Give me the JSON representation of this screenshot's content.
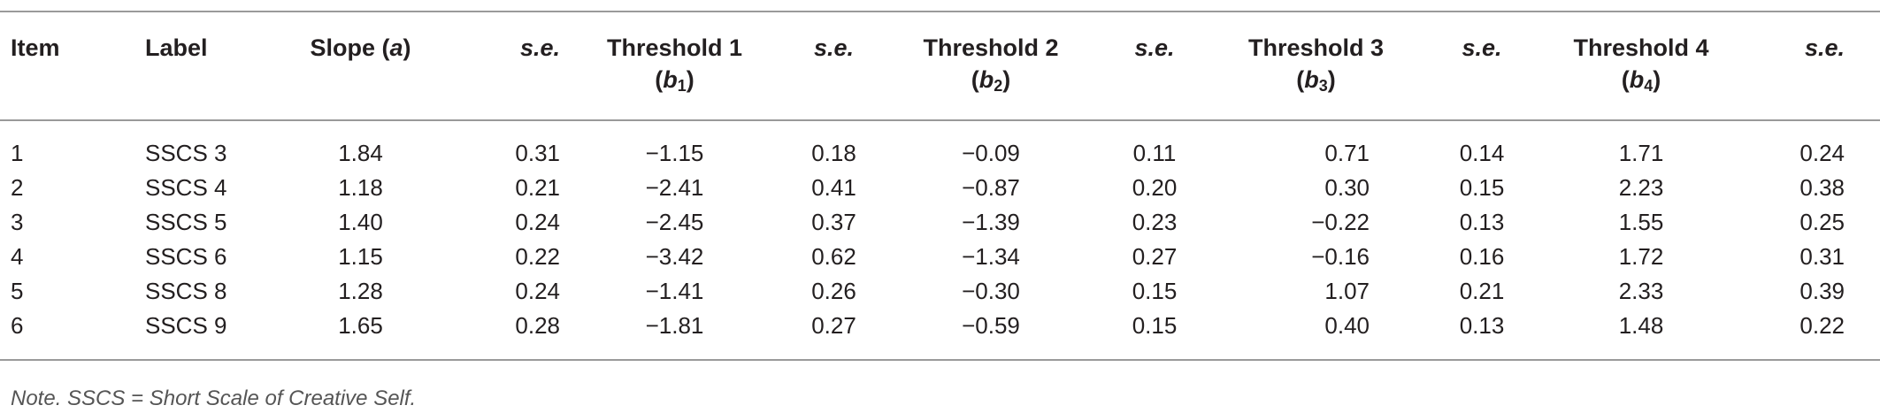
{
  "table": {
    "headers": {
      "item": "Item",
      "label": "Label",
      "slope_text": "Slope (",
      "slope_sym": "a",
      "slope_close": ")",
      "se": "s.e.",
      "threshold1": "Threshold 1",
      "threshold2": "Threshold 2",
      "threshold3": "Threshold 3",
      "threshold4": "Threshold 4",
      "b_letter": "b",
      "b1_sub": "1",
      "b2_sub": "2",
      "b3_sub": "3",
      "b4_sub": "4"
    },
    "rows": [
      {
        "item": "1",
        "label": "SSCS 3",
        "slope": "1.84",
        "se1": "0.31",
        "t1": "−1.15",
        "se2": "0.18",
        "t2": "−0.09",
        "se3": "0.11",
        "t3": "0.71",
        "se4": "0.14",
        "t4": "1.71",
        "se5": "0.24"
      },
      {
        "item": "2",
        "label": "SSCS 4",
        "slope": "1.18",
        "se1": "0.21",
        "t1": "−2.41",
        "se2": "0.41",
        "t2": "−0.87",
        "se3": "0.20",
        "t3": "0.30",
        "se4": "0.15",
        "t4": "2.23",
        "se5": "0.38"
      },
      {
        "item": "3",
        "label": "SSCS 5",
        "slope": "1.40",
        "se1": "0.24",
        "t1": "−2.45",
        "se2": "0.37",
        "t2": "−1.39",
        "se3": "0.23",
        "t3": "−0.22",
        "se4": "0.13",
        "t4": "1.55",
        "se5": "0.25"
      },
      {
        "item": "4",
        "label": "SSCS 6",
        "slope": "1.15",
        "se1": "0.22",
        "t1": "−3.42",
        "se2": "0.62",
        "t2": "−1.34",
        "se3": "0.27",
        "t3": "−0.16",
        "se4": "0.16",
        "t4": "1.72",
        "se5": "0.31"
      },
      {
        "item": "5",
        "label": "SSCS 8",
        "slope": "1.28",
        "se1": "0.24",
        "t1": "−1.41",
        "se2": "0.26",
        "t2": "−0.30",
        "se3": "0.15",
        "t3": "1.07",
        "se4": "0.21",
        "t4": "2.33",
        "se5": "0.39"
      },
      {
        "item": "6",
        "label": "SSCS 9",
        "slope": "1.65",
        "se1": "0.28",
        "t1": "−1.81",
        "se2": "0.27",
        "t2": "−0.59",
        "se3": "0.15",
        "t3": "0.40",
        "se4": "0.13",
        "t4": "1.48",
        "se5": "0.22"
      }
    ]
  },
  "note": "Note. SSCS = Short Scale of Creative Self."
}
